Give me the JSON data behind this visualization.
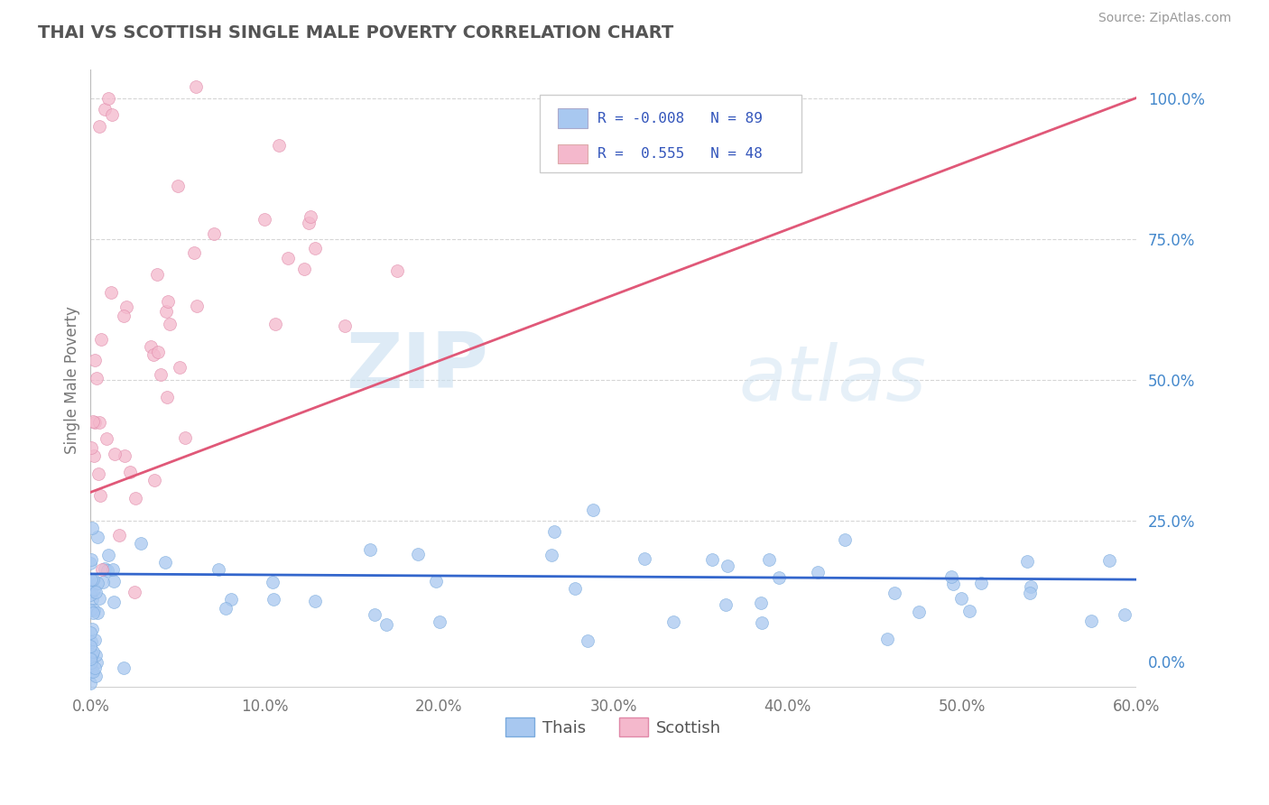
{
  "title": "THAI VS SCOTTISH SINGLE MALE POVERTY CORRELATION CHART",
  "source_text": "Source: ZipAtlas.com",
  "ylabel": "Single Male Poverty",
  "background_color": "#ffffff",
  "grid_color": "#cccccc",
  "watermark_zip": "ZIP",
  "watermark_atlas": "atlas",
  "thai_color": "#a8c8f0",
  "thai_edge_color": "#7aaadd",
  "scottish_color": "#f4b8cc",
  "scottish_edge_color": "#e088a8",
  "thai_line_color": "#3366cc",
  "scottish_line_color": "#e05878",
  "thai_R": -0.008,
  "thai_N": 89,
  "scottish_R": 0.555,
  "scottish_N": 48,
  "xmin": 0.0,
  "xmax": 0.6,
  "ymin": -0.05,
  "ymax": 1.05,
  "scottish_line_x0": 0.0,
  "scottish_line_y0": 0.3,
  "scottish_line_x1": 0.6,
  "scottish_line_y1": 1.0,
  "thai_line_x0": 0.0,
  "thai_line_y0": 0.155,
  "thai_line_x1": 0.6,
  "thai_line_y1": 0.145
}
